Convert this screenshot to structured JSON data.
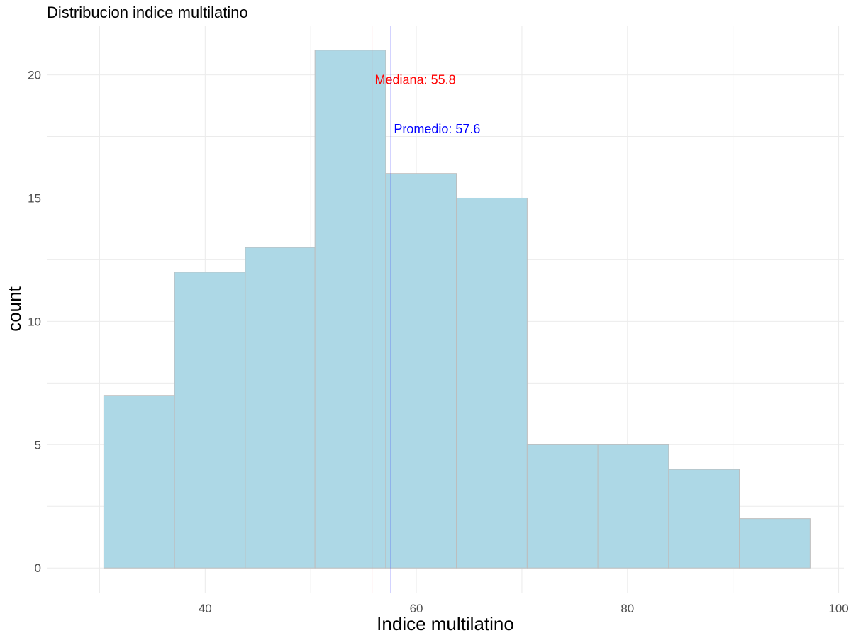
{
  "chart_data": {
    "type": "bar",
    "subtype": "histogram",
    "title": "Distribucion indice multilatino",
    "xlabel": "Indice multilatino",
    "ylabel": "count",
    "bins": [
      {
        "x0": 30.4,
        "x1": 37.1,
        "count": 7
      },
      {
        "x0": 37.1,
        "x1": 43.8,
        "count": 12
      },
      {
        "x0": 43.8,
        "x1": 50.4,
        "count": 13
      },
      {
        "x0": 50.4,
        "x1": 57.1,
        "count": 21
      },
      {
        "x0": 57.1,
        "x1": 63.8,
        "count": 16
      },
      {
        "x0": 63.8,
        "x1": 70.5,
        "count": 15
      },
      {
        "x0": 70.5,
        "x1": 77.2,
        "count": 5
      },
      {
        "x0": 77.2,
        "x1": 83.9,
        "count": 5
      },
      {
        "x0": 83.9,
        "x1": 90.6,
        "count": 4
      },
      {
        "x0": 90.6,
        "x1": 97.3,
        "count": 2
      }
    ],
    "xlim": [
      25,
      100.5
    ],
    "ylim": [
      -1,
      22
    ],
    "xticks": [
      40,
      60,
      80,
      100
    ],
    "yticks": [
      0,
      5,
      10,
      15,
      20
    ],
    "grid": true,
    "bar_fill": "#add8e6",
    "bar_stroke": "#bdbdbd",
    "reference_lines": [
      {
        "label": "Mediana: 55.8",
        "value": 55.8,
        "color": "#ff0000",
        "label_y": 19.8
      },
      {
        "label": "Promedio: 57.6",
        "value": 57.6,
        "color": "#0000ff",
        "label_y": 17.8
      }
    ]
  }
}
